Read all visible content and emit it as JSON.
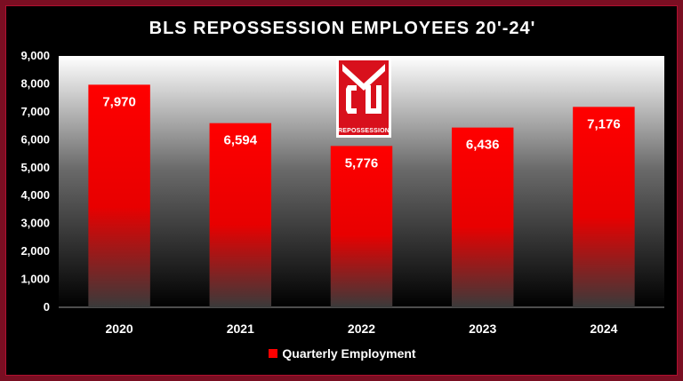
{
  "chart_data": {
    "type": "bar",
    "title": "BLS REPOSSESSION EMPLOYEES 20'-24'",
    "categories": [
      "2020",
      "2021",
      "2022",
      "2023",
      "2024"
    ],
    "series": [
      {
        "name": "Quarterly Employment",
        "values": [
          7970,
          6594,
          5776,
          6436,
          7176
        ]
      }
    ],
    "data_labels": [
      "7,970",
      "6,594",
      "5,776",
      "6,436",
      "7,176"
    ],
    "yticks": [
      "0",
      "1,000",
      "2,000",
      "3,000",
      "4,000",
      "5,000",
      "6,000",
      "7,000",
      "8,000",
      "9,000"
    ],
    "ylim": [
      0,
      9000
    ],
    "legend_position": "bottom",
    "bar_color": "#ff0000"
  },
  "logo": {
    "text": "REPOSSESSION"
  }
}
